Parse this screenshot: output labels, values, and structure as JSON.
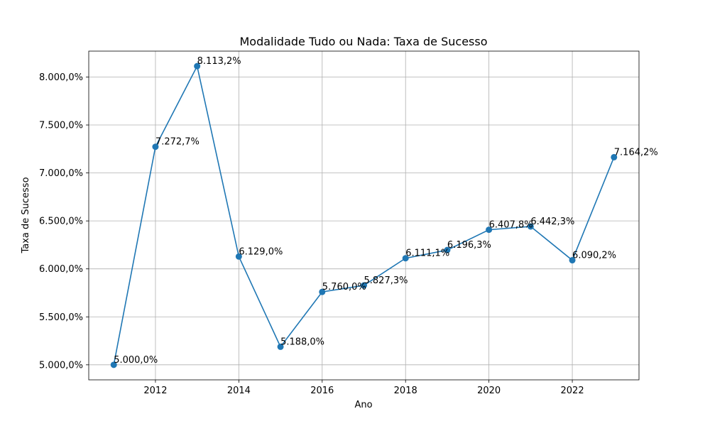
{
  "chart_data": {
    "type": "line",
    "title": "Modalidade Tudo ou Nada: Taxa de Sucesso",
    "xlabel": "Ano",
    "ylabel": "Taxa de Sucesso",
    "x": [
      2011,
      2012,
      2013,
      2014,
      2015,
      2016,
      2017,
      2018,
      2019,
      2020,
      2021,
      2022,
      2023
    ],
    "series": [
      {
        "values": [
          5000.0,
          7272.7,
          8113.2,
          6129.0,
          5188.0,
          5760.0,
          5827.3,
          6111.1,
          6196.3,
          6407.8,
          6442.3,
          6090.2,
          7164.2
        ],
        "labels": [
          "5.000,0%",
          "7.272,7%",
          "8.113,2%",
          "6.129,0%",
          "5.188,0%",
          "5.760,0%",
          "5.827,3%",
          "6.111,1%",
          "6.196,3%",
          "6.407,8%",
          "6.442,3%",
          "6.090,2%",
          "7.164,2%"
        ],
        "color": "#1f77b4"
      }
    ],
    "xticks": [
      2012,
      2014,
      2016,
      2018,
      2020,
      2022
    ],
    "xtick_labels": [
      "2012",
      "2014",
      "2016",
      "2018",
      "2020",
      "2022"
    ],
    "yticks": [
      5000,
      5500,
      6000,
      6500,
      7000,
      7500,
      8000
    ],
    "ytick_labels": [
      "5.000,0%",
      "5.500,0%",
      "6.000,0%",
      "6.500,0%",
      "7.000,0%",
      "7.500,0%",
      "8.000,0%"
    ],
    "xlim": [
      2010.4,
      2023.6
    ],
    "ylim": [
      4843.3,
      8269.9
    ],
    "grid": true,
    "markers": "circle"
  }
}
